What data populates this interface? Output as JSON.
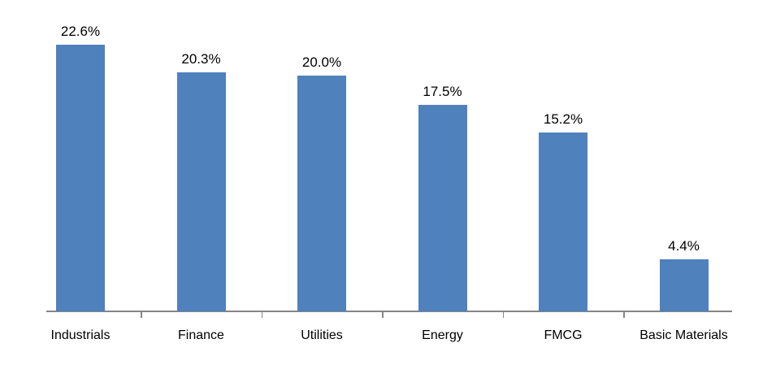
{
  "chart_data": {
    "type": "bar",
    "title": "",
    "xlabel": "",
    "ylabel": "",
    "categories": [
      "Industrials",
      "Finance",
      "Utilities",
      "Energy",
      "FMCG",
      "Basic Materials"
    ],
    "values": [
      22.6,
      20.3,
      20.0,
      17.5,
      15.2,
      4.4
    ],
    "data_labels": [
      "22.6%",
      "20.3%",
      "20.0%",
      "17.5%",
      "15.2%",
      "4.4%"
    ],
    "unit": "%",
    "ylim": [
      0,
      24
    ],
    "grid": false,
    "legend": false,
    "y_axis_visible": false,
    "data_labels_visible": true,
    "colors": {
      "bar": "#4F81BD",
      "axis": "#868686",
      "text": "#000000",
      "background": "#FFFFFF"
    }
  }
}
